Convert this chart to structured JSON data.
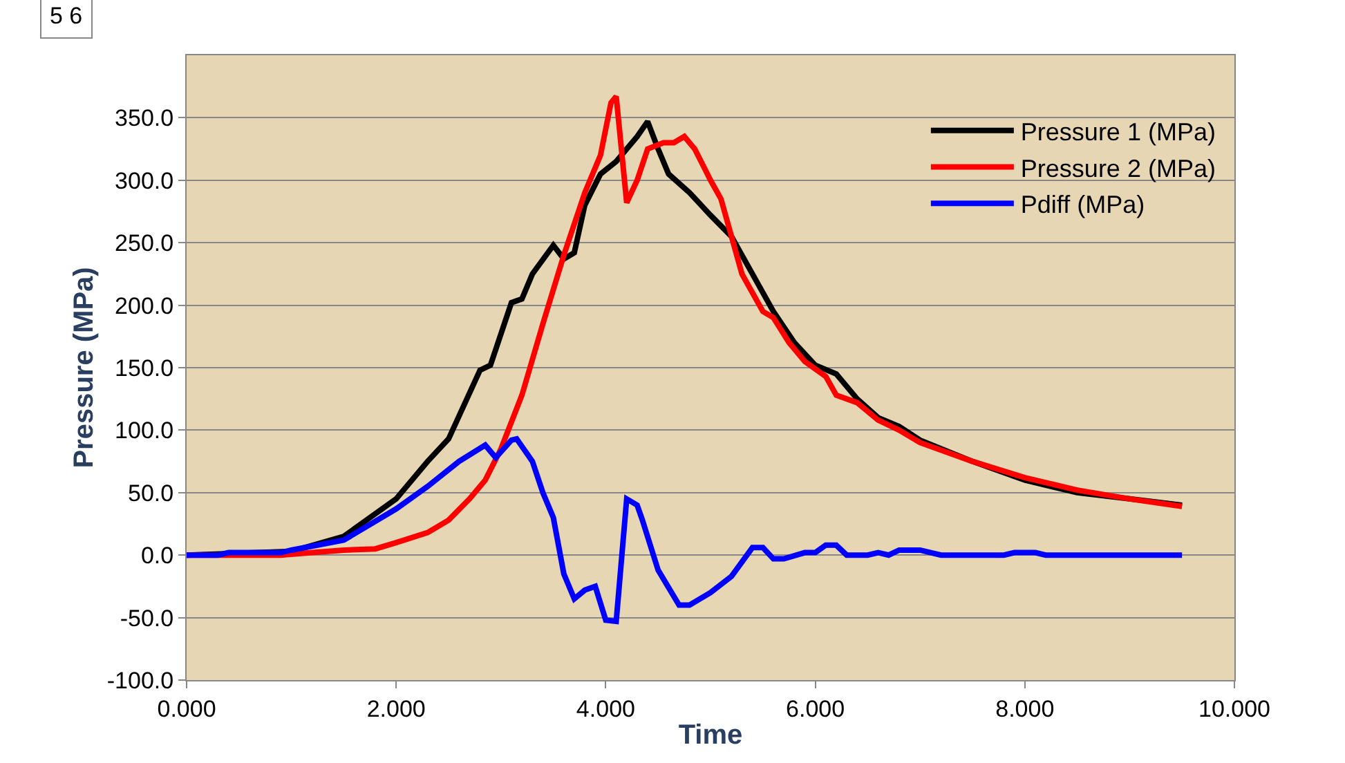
{
  "chart_data": {
    "type": "line",
    "xlabel": "Time",
    "ylabel": "Pressure (MPa)",
    "annotations": [
      "5 6"
    ],
    "xlim": [
      0,
      10
    ],
    "xticks": [
      {
        "value": 0,
        "label": "0.000"
      },
      {
        "value": 2,
        "label": "2.000"
      },
      {
        "value": 4,
        "label": "4.000"
      },
      {
        "value": 6,
        "label": "6.000"
      },
      {
        "value": 8,
        "label": "8.000"
      },
      {
        "value": 10,
        "label": "10.000"
      }
    ],
    "ylim": [
      -100,
      400
    ],
    "yticks": [
      {
        "value": -100,
        "label": "-100.0"
      },
      {
        "value": -50,
        "label": "-50.0"
      },
      {
        "value": 0,
        "label": "0.0"
      },
      {
        "value": 50,
        "label": "50.0"
      },
      {
        "value": 100,
        "label": "100.0"
      },
      {
        "value": 150,
        "label": "150.0"
      },
      {
        "value": 200,
        "label": "200.0"
      },
      {
        "value": 250,
        "label": "250.0"
      },
      {
        "value": 300,
        "label": "300.0"
      },
      {
        "value": 350,
        "label": "350.0"
      }
    ],
    "grid": "y",
    "legend": "top right",
    "marker": "none",
    "line_style": "solid",
    "series": [
      {
        "name": "Pressure 1 (MPa)",
        "color": "#000000",
        "x": [
          0,
          1.0,
          1.5,
          2.0,
          2.3,
          2.5,
          2.8,
          2.9,
          3.1,
          3.2,
          3.3,
          3.5,
          3.6,
          3.7,
          3.8,
          3.95,
          4.1,
          4.3,
          4.4,
          4.5,
          4.6,
          4.8,
          5.0,
          5.2,
          5.4,
          5.6,
          5.8,
          6.0,
          6.2,
          6.4,
          6.6,
          6.8,
          7.0,
          7.5,
          8.0,
          8.5,
          9.0,
          9.5
        ],
        "values": [
          0,
          3,
          15,
          45,
          75,
          93,
          148,
          152,
          202,
          205,
          225,
          248,
          237,
          242,
          280,
          305,
          315,
          335,
          347,
          325,
          305,
          290,
          272,
          255,
          225,
          195,
          170,
          152,
          145,
          125,
          110,
          103,
          92,
          75,
          60,
          50,
          45,
          40
        ]
      },
      {
        "name": "Pressure 2 (MPa)",
        "color": "#ff0000",
        "x": [
          0,
          0.9,
          1.2,
          1.5,
          1.8,
          2.0,
          2.3,
          2.5,
          2.7,
          2.85,
          3.0,
          3.2,
          3.4,
          3.6,
          3.8,
          3.95,
          4.05,
          4.1,
          4.2,
          4.3,
          4.4,
          4.55,
          4.65,
          4.75,
          4.85,
          5.0,
          5.1,
          5.2,
          5.3,
          5.5,
          5.6,
          5.75,
          5.9,
          6.1,
          6.2,
          6.4,
          6.6,
          6.8,
          7.0,
          7.5,
          8.0,
          8.5,
          9.0,
          9.5
        ],
        "values": [
          0,
          0,
          2,
          4,
          5,
          10,
          18,
          28,
          45,
          60,
          85,
          128,
          185,
          240,
          290,
          320,
          362,
          367,
          282,
          300,
          325,
          330,
          330,
          335,
          325,
          300,
          285,
          255,
          225,
          195,
          190,
          170,
          155,
          143,
          128,
          122,
          108,
          100,
          90,
          75,
          62,
          52,
          45,
          39
        ]
      },
      {
        "name": "Pdiff (MPa)",
        "color": "#0000ff",
        "x": [
          0,
          0.3,
          0.4,
          0.9,
          1.0,
          1.5,
          2.0,
          2.3,
          2.6,
          2.85,
          2.95,
          3.1,
          3.15,
          3.3,
          3.4,
          3.5,
          3.6,
          3.7,
          3.8,
          3.9,
          4.0,
          4.1,
          4.2,
          4.3,
          4.35,
          4.5,
          4.7,
          4.8,
          5.0,
          5.2,
          5.4,
          5.5,
          5.6,
          5.7,
          5.9,
          6.0,
          6.1,
          6.2,
          6.3,
          6.5,
          6.6,
          6.7,
          6.8,
          7.0,
          7.2,
          7.8,
          7.9,
          8.1,
          8.2,
          9.5
        ],
        "values": [
          0,
          0,
          2,
          2,
          4,
          12,
          37,
          55,
          75,
          88,
          78,
          92,
          93,
          75,
          50,
          30,
          -15,
          -35,
          -28,
          -25,
          -52,
          -53,
          45,
          40,
          28,
          -12,
          -40,
          -40,
          -30,
          -17,
          6,
          6,
          -3,
          -3,
          2,
          2,
          8,
          8,
          0,
          0,
          2,
          0,
          4,
          4,
          0,
          0,
          2,
          2,
          0,
          0
        ]
      }
    ]
  }
}
